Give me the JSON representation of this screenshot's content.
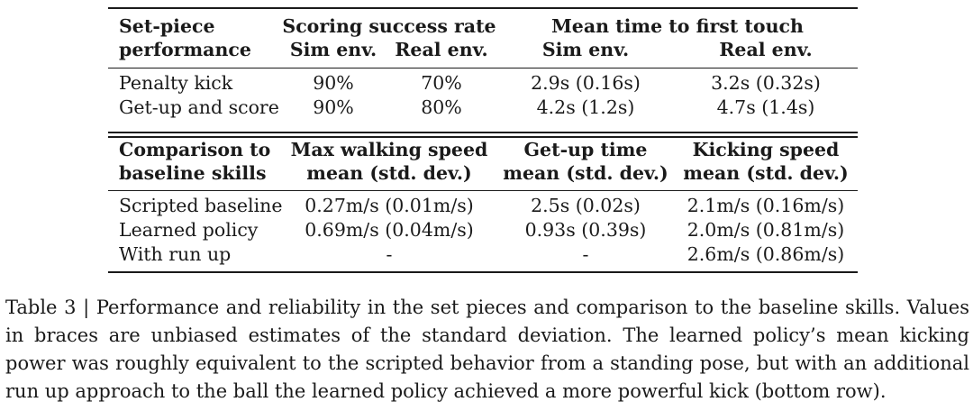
{
  "table1": {
    "header": {
      "row_label_line1": "Set-piece",
      "row_label_line2": "performance",
      "group1_title": "Scoring success rate",
      "group1_sub1": "Sim env.",
      "group1_sub2": "Real env.",
      "group2_title": "Mean time to first touch",
      "group2_sub1": "Sim env.",
      "group2_sub2": "Real env."
    },
    "rows": [
      {
        "label": "Penalty kick",
        "c1": "90%",
        "c2": "70%",
        "c3": "2.9s (0.16s)",
        "c4": "3.2s (0.32s)"
      },
      {
        "label": "Get-up and score",
        "c1": "90%",
        "c2": "80%",
        "c3": "4.2s (1.2s)",
        "c4": "4.7s (1.4s)"
      }
    ]
  },
  "table2": {
    "header": {
      "row_label_line1": "Comparison to",
      "row_label_line2": "baseline skills",
      "col1_line1": "Max walking speed",
      "col1_line2": "mean (std. dev.)",
      "col2_line1": "Get-up time",
      "col2_line2": "mean (std. dev.)",
      "col3_line1": "Kicking speed",
      "col3_line2": "mean (std. dev.)"
    },
    "rows": [
      {
        "label": "Scripted baseline",
        "c1": "0.27m/s (0.01m/s)",
        "c2": "2.5s (0.02s)",
        "c3": "2.1m/s (0.16m/s)"
      },
      {
        "label": "Learned policy",
        "c1": "0.69m/s (0.04m/s)",
        "c2": "0.93s (0.39s)",
        "c3": "2.0m/s (0.81m/s)"
      },
      {
        "label": "With run up",
        "c1": "-",
        "c2": "-",
        "c3": "2.6m/s (0.86m/s)"
      }
    ]
  },
  "caption": "Table 3 | Performance and reliability in the set pieces and comparison to the baseline skills. Values in braces are unbiased estimates of the standard deviation. The learned policy’s mean kicking power was roughly equivalent to the scripted behavior from a standing pose, but with an additional run up approach to the ball the learned policy achieved a more powerful kick (bottom row)."
}
